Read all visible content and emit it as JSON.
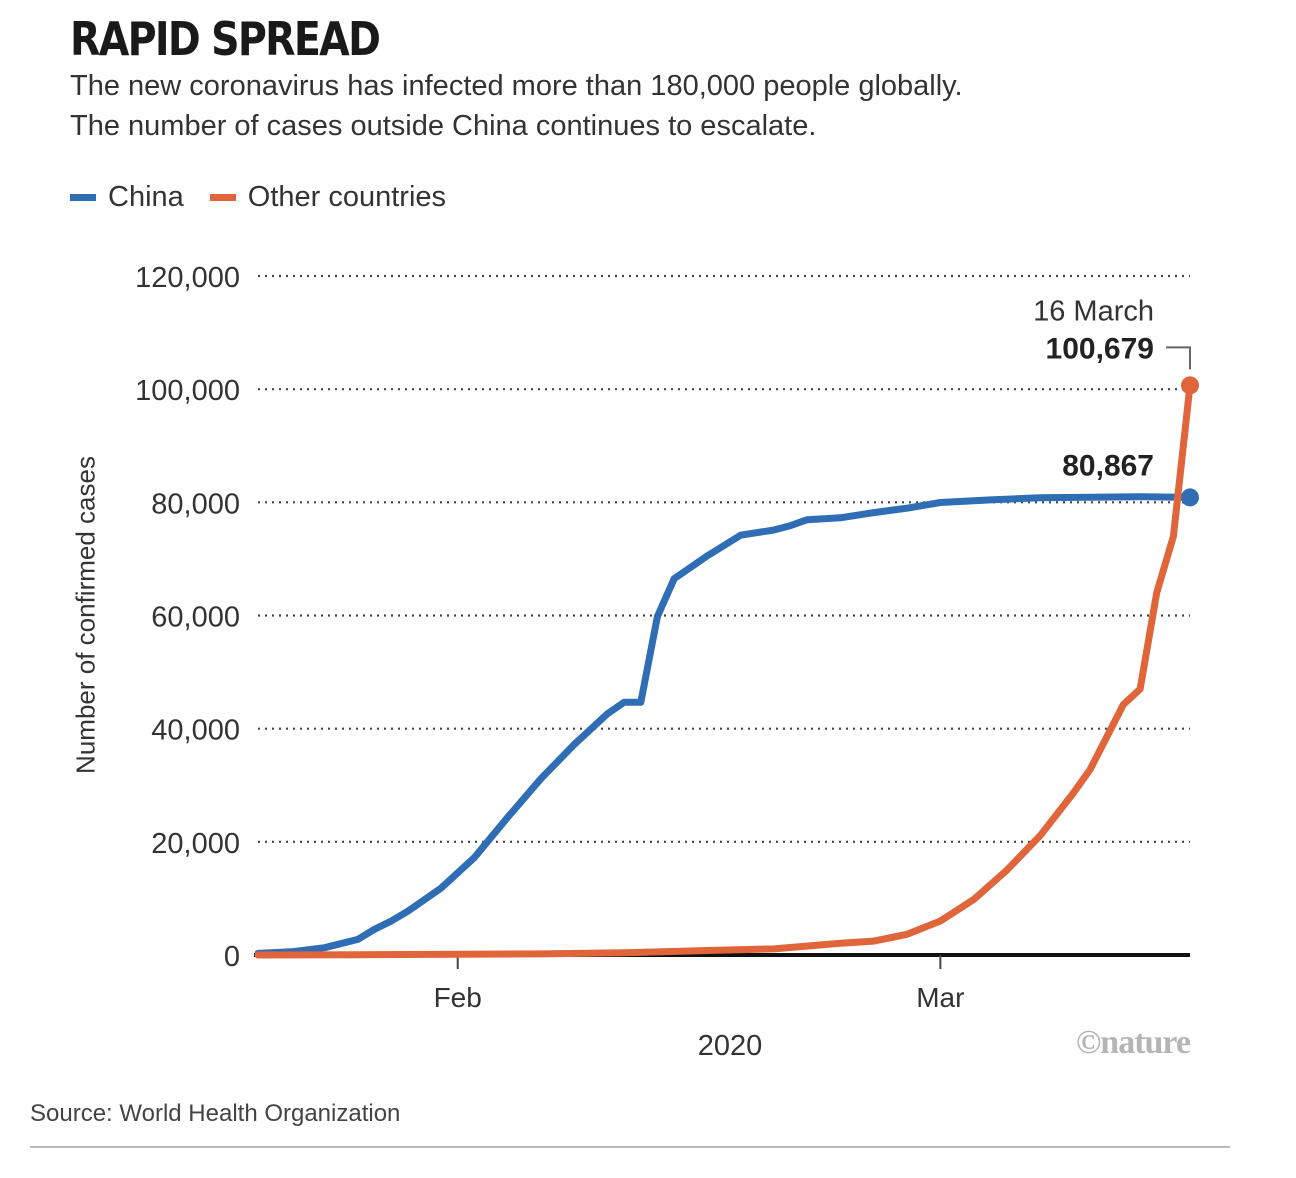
{
  "header": {
    "title": "RAPID SPREAD",
    "subtitle_line1": "The new coronavirus has infected more than 180,000 people globally.",
    "subtitle_line2": "The number of cases outside China continues to escalate."
  },
  "colors": {
    "china": "#2f6db5",
    "other": "#e0653a",
    "grid": "#444444",
    "axis": "#111111"
  },
  "chart_data": {
    "type": "line",
    "xlabel": "2020",
    "ylabel": "Number of confirmed cases",
    "x_tick_labels": [
      "Feb",
      "Mar"
    ],
    "y_ticks": [
      0,
      20000,
      40000,
      60000,
      80000,
      100000,
      120000
    ],
    "y_tick_labels": [
      "0",
      "20,000",
      "40,000",
      "60,000",
      "80,000",
      "100,000",
      "120,000"
    ],
    "ylim": [
      0,
      120000
    ],
    "x_range": [
      "2020-01-20",
      "2020-03-16"
    ],
    "grid": "horizontal dotted",
    "legend_position": "top-left",
    "series": [
      {
        "name": "China",
        "color": "#2f6db5",
        "end_label": "80,867",
        "points": [
          [
            "2020-01-20",
            278
          ],
          [
            "2020-01-22",
            571
          ],
          [
            "2020-01-24",
            1297
          ],
          [
            "2020-01-26",
            2761
          ],
          [
            "2020-01-27",
            4537
          ],
          [
            "2020-01-28",
            5997
          ],
          [
            "2020-01-29",
            7736
          ],
          [
            "2020-01-31",
            11821
          ],
          [
            "2020-02-02",
            17238
          ],
          [
            "2020-02-04",
            24324
          ],
          [
            "2020-02-06",
            31161
          ],
          [
            "2020-02-08",
            37198
          ],
          [
            "2020-02-10",
            42638
          ],
          [
            "2020-02-11",
            44653
          ],
          [
            "2020-02-12",
            44653
          ],
          [
            "2020-02-13",
            59804
          ],
          [
            "2020-02-14",
            66492
          ],
          [
            "2020-02-16",
            70548
          ],
          [
            "2020-02-18",
            74185
          ],
          [
            "2020-02-20",
            75102
          ],
          [
            "2020-02-21",
            75891
          ],
          [
            "2020-02-22",
            76936
          ],
          [
            "2020-02-24",
            77262
          ],
          [
            "2020-02-26",
            78191
          ],
          [
            "2020-02-28",
            78961
          ],
          [
            "2020-03-01",
            79968
          ],
          [
            "2020-03-04",
            80422
          ],
          [
            "2020-03-07",
            80813
          ],
          [
            "2020-03-10",
            80904
          ],
          [
            "2020-03-13",
            80991
          ],
          [
            "2020-03-16",
            80867
          ]
        ]
      },
      {
        "name": "Other countries",
        "color": "#e0653a",
        "end_label": "100,679",
        "end_date_label": "16 March",
        "points": [
          [
            "2020-01-20",
            4
          ],
          [
            "2020-01-26",
            37
          ],
          [
            "2020-02-01",
            132
          ],
          [
            "2020-02-06",
            191
          ],
          [
            "2020-02-11",
            393
          ],
          [
            "2020-02-16",
            794
          ],
          [
            "2020-02-20",
            1073
          ],
          [
            "2020-02-24",
            2069
          ],
          [
            "2020-02-26",
            2459
          ],
          [
            "2020-02-28",
            3664
          ],
          [
            "2020-03-01",
            6009
          ],
          [
            "2020-03-03",
            9796
          ],
          [
            "2020-03-05",
            15000
          ],
          [
            "2020-03-07",
            21110
          ],
          [
            "2020-03-09",
            28674
          ],
          [
            "2020-03-10",
            32778
          ],
          [
            "2020-03-12",
            44279
          ],
          [
            "2020-03-13",
            47000
          ],
          [
            "2020-03-14",
            64000
          ],
          [
            "2020-03-15",
            74000
          ],
          [
            "2020-03-16",
            100679
          ]
        ]
      }
    ]
  },
  "footer": {
    "logo": "©nature",
    "source": "Source: World Health Organization"
  }
}
